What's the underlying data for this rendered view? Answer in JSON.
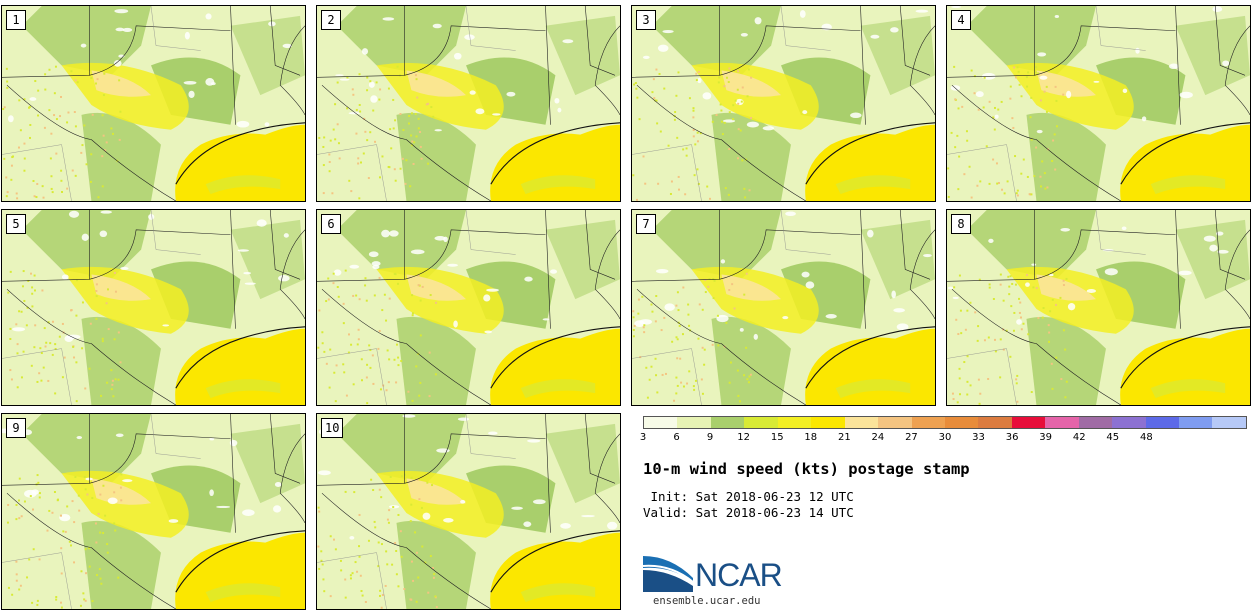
{
  "panels": [
    "1",
    "2",
    "3",
    "4",
    "5",
    "6",
    "7",
    "8",
    "9",
    "10"
  ],
  "colorbar": {
    "colors": [
      "#f7fbe8",
      "#e7f3b4",
      "#a9cf6c",
      "#d8ea35",
      "#f3ef23",
      "#fbe700",
      "#fbe49a",
      "#f4c481",
      "#eea151",
      "#e88c3a",
      "#dc7c40",
      "#e80e3a",
      "#e564a9",
      "#a06ba5",
      "#8c71d2",
      "#5d6ae8",
      "#7f9cf0",
      "#b6c9f7"
    ],
    "ticks": [
      "3",
      "6",
      "9",
      "12",
      "15",
      "18",
      "21",
      "24",
      "27",
      "30",
      "33",
      "36",
      "39",
      "42",
      "45",
      "48"
    ]
  },
  "title": "10-m wind speed (kts) postage stamp",
  "init_line": " Init: Sat 2018-06-23 12 UTC",
  "valid_line": "Valid: Sat 2018-06-23 14 UTC",
  "logo_text": "NCAR",
  "site": "ensemble.ucar.edu"
}
